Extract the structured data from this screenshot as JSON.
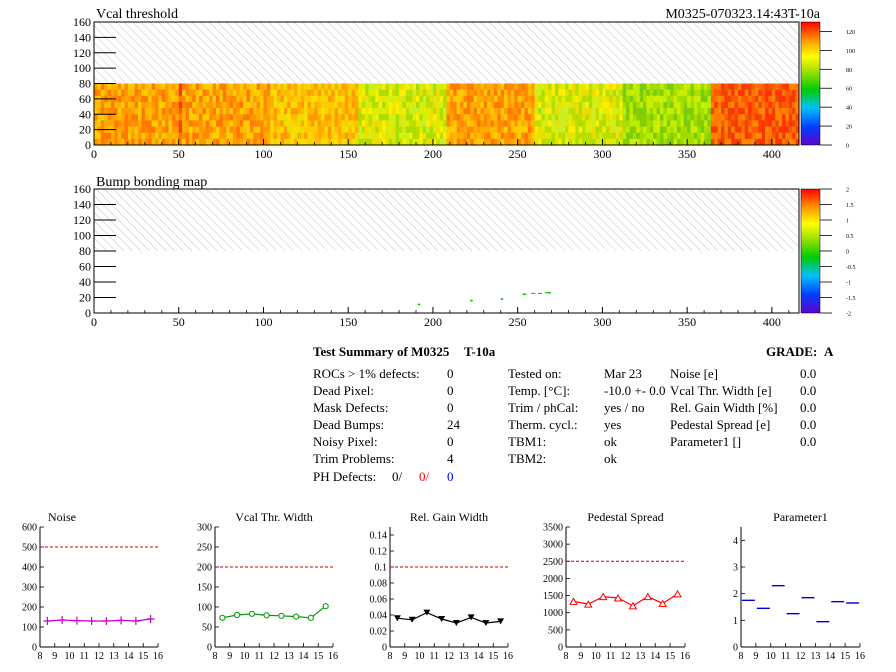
{
  "map1": {
    "title": "Vcal threshold",
    "id_label": "M0325-070323.14:43T-10a",
    "x_ticks": [
      "0",
      "50",
      "100",
      "150",
      "200",
      "250",
      "300",
      "350",
      "400"
    ],
    "y_ticks": [
      "0",
      "20",
      "40",
      "60",
      "80",
      "100",
      "120",
      "140",
      "160"
    ],
    "palette_ticks": [
      "0",
      "20",
      "40",
      "60",
      "80",
      "100",
      "120"
    ]
  },
  "map2": {
    "title": "Bump bonding map",
    "x_ticks": [
      "0",
      "50",
      "100",
      "150",
      "200",
      "250",
      "300",
      "350",
      "400"
    ],
    "y_ticks": [
      "0",
      "20",
      "40",
      "60",
      "80",
      "100",
      "120",
      "140",
      "160"
    ],
    "palette_ticks": [
      "-2",
      "-1.5",
      "-1",
      "-0.5",
      "0",
      "0.5",
      "1",
      "1.5",
      "2"
    ]
  },
  "summary": {
    "title": "Test Summary of M0325",
    "temp_tag": "T-10a",
    "grade_label": "GRADE:",
    "grade": "A",
    "col1": [
      {
        "label": "ROCs > 1% defects:",
        "value": "0"
      },
      {
        "label": "Dead Pixel:",
        "value": "0"
      },
      {
        "label": "Mask Defects:",
        "value": "0"
      },
      {
        "label": "Dead Bumps:",
        "value": "24"
      },
      {
        "label": "Noisy Pixel:",
        "value": "0"
      },
      {
        "label": "Trim Problems:",
        "value": "4"
      }
    ],
    "ph_label": "PH Defects:",
    "ph_values": [
      "0/",
      "0/",
      "0"
    ],
    "ph_colors": [
      "#000000",
      "#ff0000",
      "#0000ff"
    ],
    "col2": [
      {
        "label": "Tested on:",
        "value": "Mar 23"
      },
      {
        "label": "Temp. [°C]:",
        "value": "-10.0 +- 0.0"
      },
      {
        "label": "Trim / phCal:",
        "value": "yes / no"
      },
      {
        "label": "Therm. cycl.:",
        "value": "yes"
      },
      {
        "label": "TBM1:",
        "value": "ok"
      },
      {
        "label": "TBM2:",
        "value": "ok"
      }
    ],
    "col3": [
      {
        "label": "Noise [e]",
        "value": "0.0"
      },
      {
        "label": "Vcal Thr. Width [e]",
        "value": "0.0"
      },
      {
        "label": "Rel. Gain Width [%]",
        "value": "0.0"
      },
      {
        "label": "Pedestal Spread [e]",
        "value": "0.0"
      },
      {
        "label": "Parameter1 []",
        "value": "0.0"
      }
    ]
  },
  "chart_data": [
    {
      "type": "heatmap",
      "title": "Vcal threshold",
      "xlim": [
        0,
        416
      ],
      "ylim": [
        0,
        160
      ],
      "filled_rows": [
        0,
        80
      ],
      "z_range": [
        0,
        130
      ],
      "column_bands": [
        {
          "x": [
            0,
            50
          ],
          "level": "orange"
        },
        {
          "x": [
            50,
            52
          ],
          "level": "red"
        },
        {
          "x": [
            52,
            104
          ],
          "level": "orange"
        },
        {
          "x": [
            104,
            156
          ],
          "level": "orange-yellow"
        },
        {
          "x": [
            156,
            208
          ],
          "level": "yellow-green"
        },
        {
          "x": [
            208,
            260
          ],
          "level": "orange"
        },
        {
          "x": [
            260,
            312
          ],
          "level": "yellow-green"
        },
        {
          "x": [
            312,
            364
          ],
          "level": "green"
        },
        {
          "x": [
            364,
            416
          ],
          "level": "red"
        }
      ]
    },
    {
      "type": "heatmap",
      "title": "Bump bonding map",
      "xlim": [
        0,
        416
      ],
      "ylim": [
        0,
        160
      ],
      "z_range": [
        -2,
        2
      ],
      "points": [
        [
          191,
          12
        ],
        [
          222,
          17
        ],
        [
          240,
          19
        ],
        [
          253,
          25
        ],
        [
          268,
          27
        ]
      ]
    },
    {
      "type": "line",
      "title": "Noise",
      "color": "#cc00cc",
      "marker": "cross",
      "x": [
        8.5,
        9.5,
        10.5,
        11.5,
        12.5,
        13.5,
        14.5,
        15.5
      ],
      "values": [
        130,
        135,
        132,
        130,
        130,
        133,
        130,
        140
      ],
      "xlim": [
        8,
        16
      ],
      "ylim": [
        0,
        600
      ],
      "reference": 500,
      "yticks": [
        "0",
        "100",
        "200",
        "300",
        "400",
        "500",
        "600"
      ]
    },
    {
      "type": "line",
      "title": "Vcal Thr. Width",
      "color": "#009900",
      "marker": "circle",
      "x": [
        8.5,
        9.5,
        10.5,
        11.5,
        12.5,
        13.5,
        14.5,
        15.5
      ],
      "values": [
        73,
        80,
        83,
        79,
        78,
        76,
        73,
        102
      ],
      "xlim": [
        8,
        16
      ],
      "ylim": [
        0,
        300
      ],
      "reference": 200,
      "yticks": [
        "0",
        "50",
        "100",
        "150",
        "200",
        "250",
        "300"
      ]
    },
    {
      "type": "line",
      "title": "Rel. Gain Width",
      "color": "#000000",
      "marker": "triangle-down",
      "x": [
        8.5,
        9.5,
        10.5,
        11.5,
        12.5,
        13.5,
        14.5,
        15.5
      ],
      "values": [
        0.036,
        0.034,
        0.043,
        0.035,
        0.03,
        0.037,
        0.03,
        0.032
      ],
      "xlim": [
        8,
        16
      ],
      "ylim": [
        0,
        0.15
      ],
      "reference": 0.1,
      "yticks": [
        "0",
        "0.02",
        "0.04",
        "0.06",
        "0.08",
        "0.1",
        "0.12",
        "0.14"
      ]
    },
    {
      "type": "line",
      "title": "Pedestal Spread",
      "color": "#ff0000",
      "marker": "triangle-up",
      "x": [
        8.5,
        9.5,
        10.5,
        11.5,
        12.5,
        13.5,
        14.5,
        15.5
      ],
      "values": [
        1330,
        1250,
        1470,
        1430,
        1200,
        1470,
        1270,
        1550
      ],
      "xlim": [
        8,
        16
      ],
      "ylim": [
        0,
        3500
      ],
      "reference": 2500,
      "yticks": [
        "0",
        "500",
        "1000",
        "1500",
        "2000",
        "2500",
        "3000",
        "3500"
      ]
    },
    {
      "type": "scatter",
      "title": "Parameter1",
      "color": "#0000cc",
      "marker": "hbar",
      "x": [
        8.5,
        9.5,
        10.5,
        11.5,
        12.5,
        13.5,
        14.5,
        15.5
      ],
      "values": [
        1.75,
        1.45,
        2.3,
        1.25,
        1.85,
        0.95,
        1.7,
        1.65
      ],
      "xlim": [
        8,
        16
      ],
      "ylim": [
        0,
        4.5
      ],
      "yticks": [
        "0",
        "1",
        "2",
        "3",
        "4"
      ]
    }
  ],
  "small_x_ticks": [
    "8",
    "9",
    "10",
    "11",
    "12",
    "13",
    "14",
    "15",
    "16"
  ]
}
